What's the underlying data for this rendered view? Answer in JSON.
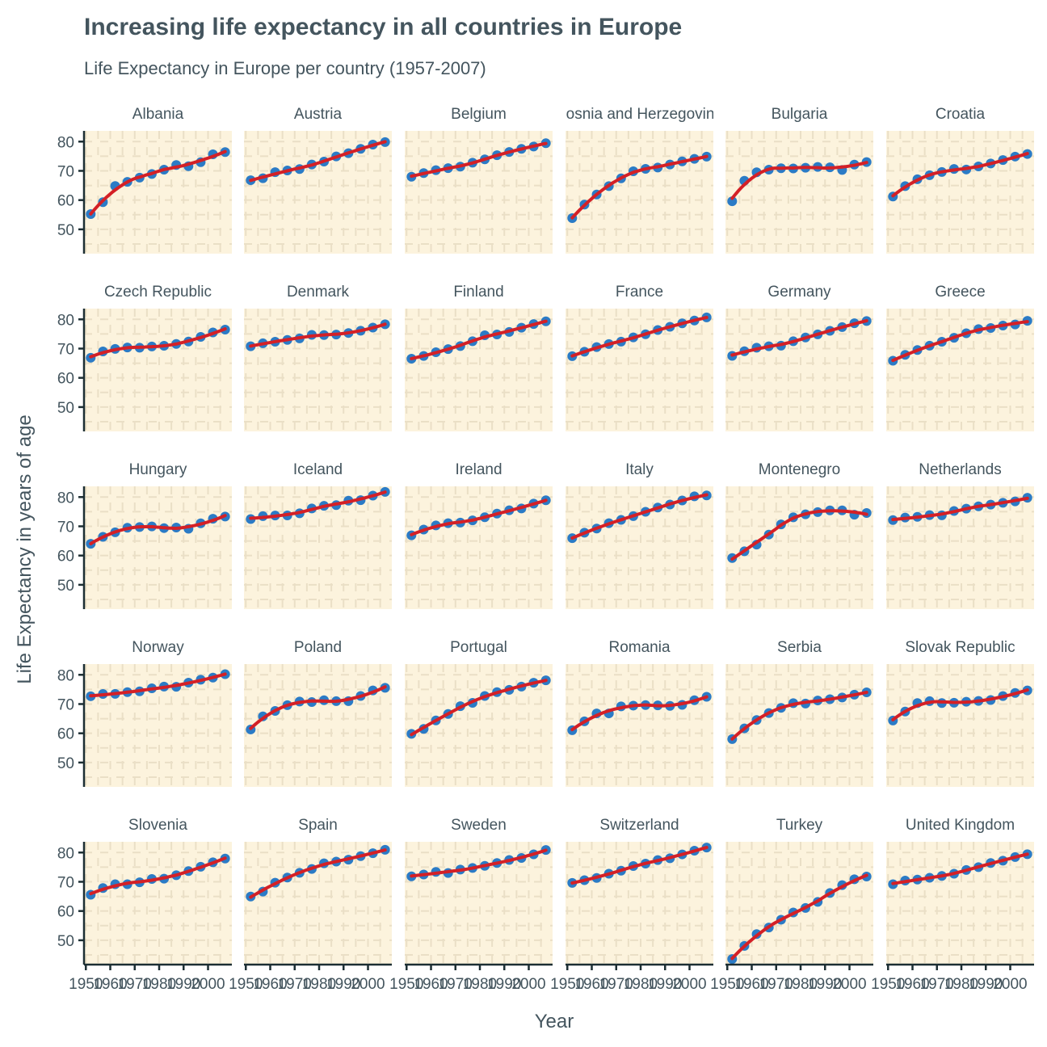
{
  "chart_data": {
    "type": "line",
    "title": "Increasing life expectancy in all countries in Europe",
    "subtitle": "Life Expectancy in Europe per country (1957-2007)",
    "xlabel": "Year",
    "ylabel": "Life Expectancy in years of age",
    "xlim": [
      1949.25,
      2009.75
    ],
    "ylim": [
      41.68,
      83.67
    ],
    "xticks": [
      1950,
      1960,
      1970,
      1980,
      1990,
      2000
    ],
    "yticks": [
      50,
      60,
      70,
      80
    ],
    "grid": true,
    "facet": "country",
    "smooth": "loess",
    "colors": {
      "points": "#2b7bc6",
      "smooth": "#d42026",
      "panel": "#fcf3dd",
      "grid": "#eadfc6",
      "axis": "#1c2e33"
    },
    "x": [
      1952,
      1957,
      1962,
      1967,
      1972,
      1977,
      1982,
      1987,
      1992,
      1997,
      2002,
      2007
    ],
    "series": [
      {
        "name": "Albania",
        "values": [
          55.23,
          59.28,
          64.82,
          66.22,
          67.69,
          68.93,
          70.42,
          72.0,
          71.58,
          72.95,
          75.65,
          76.42
        ]
      },
      {
        "name": "Austria",
        "values": [
          66.8,
          67.48,
          69.54,
          70.14,
          70.63,
          72.17,
          73.18,
          74.94,
          76.04,
          77.51,
          78.98,
          79.83
        ]
      },
      {
        "name": "Belgium",
        "values": [
          68.0,
          69.24,
          70.25,
          70.94,
          71.44,
          72.8,
          73.93,
          75.35,
          76.46,
          77.53,
          78.32,
          79.44
        ]
      },
      {
        "name": "Bosnia and Herzegovina",
        "values": [
          53.82,
          58.45,
          61.93,
          64.79,
          67.45,
          69.86,
          70.69,
          71.14,
          72.18,
          73.24,
          74.09,
          74.85
        ]
      },
      {
        "name": "Bulgaria",
        "values": [
          59.6,
          66.61,
          69.51,
          70.42,
          70.9,
          70.81,
          71.08,
          71.34,
          71.19,
          70.32,
          72.14,
          73.0
        ]
      },
      {
        "name": "Croatia",
        "values": [
          61.21,
          64.77,
          67.13,
          68.5,
          69.61,
          70.64,
          70.46,
          71.52,
          72.53,
          73.68,
          74.88,
          75.75
        ]
      },
      {
        "name": "Czech Republic",
        "values": [
          66.87,
          69.03,
          69.9,
          70.38,
          70.29,
          70.71,
          70.96,
          71.58,
          72.4,
          74.01,
          75.51,
          76.49
        ]
      },
      {
        "name": "Denmark",
        "values": [
          70.78,
          71.81,
          72.35,
          72.96,
          73.47,
          74.69,
          74.63,
          74.8,
          75.33,
          76.11,
          77.18,
          78.33
        ]
      },
      {
        "name": "Finland",
        "values": [
          66.55,
          67.49,
          68.75,
          69.83,
          70.87,
          72.52,
          74.55,
          74.83,
          75.7,
          77.13,
          78.37,
          79.31
        ]
      },
      {
        "name": "France",
        "values": [
          67.41,
          68.93,
          70.51,
          71.55,
          72.38,
          73.83,
          74.89,
          76.34,
          77.46,
          78.64,
          79.59,
          80.66
        ]
      },
      {
        "name": "Germany",
        "values": [
          67.5,
          69.1,
          70.3,
          70.8,
          71.0,
          72.5,
          73.8,
          74.85,
          76.07,
          77.34,
          78.67,
          79.41
        ]
      },
      {
        "name": "Greece",
        "values": [
          65.86,
          67.86,
          69.51,
          71.0,
          72.34,
          73.68,
          75.24,
          76.67,
          77.03,
          77.87,
          78.26,
          79.48
        ]
      },
      {
        "name": "Hungary",
        "values": [
          64.03,
          66.41,
          67.96,
          69.5,
          69.76,
          69.95,
          69.39,
          69.58,
          69.17,
          71.04,
          72.59,
          73.34
        ]
      },
      {
        "name": "Iceland",
        "values": [
          72.49,
          73.47,
          73.68,
          73.73,
          74.46,
          76.11,
          76.99,
          77.23,
          78.77,
          78.95,
          80.5,
          81.76
        ]
      },
      {
        "name": "Ireland",
        "values": [
          66.91,
          68.9,
          70.29,
          71.08,
          71.28,
          72.03,
          73.1,
          74.36,
          75.47,
          76.12,
          77.78,
          78.89
        ]
      },
      {
        "name": "Italy",
        "values": [
          65.94,
          67.81,
          69.24,
          71.06,
          72.19,
          73.48,
          74.98,
          76.42,
          77.44,
          78.82,
          80.24,
          80.55
        ]
      },
      {
        "name": "Montenegro",
        "values": [
          59.16,
          61.45,
          63.73,
          67.18,
          70.64,
          73.07,
          74.1,
          74.87,
          75.44,
          75.45,
          73.98,
          74.54
        ]
      },
      {
        "name": "Netherlands",
        "values": [
          72.13,
          72.99,
          73.23,
          73.82,
          73.75,
          75.24,
          76.05,
          76.83,
          77.42,
          78.03,
          78.53,
          79.76
        ]
      },
      {
        "name": "Norway",
        "values": [
          72.67,
          73.44,
          73.47,
          74.08,
          74.34,
          75.37,
          75.97,
          75.89,
          77.32,
          78.32,
          79.05,
          80.2
        ]
      },
      {
        "name": "Poland",
        "values": [
          61.31,
          65.77,
          67.64,
          69.61,
          70.85,
          70.67,
          71.32,
          70.98,
          70.99,
          72.75,
          74.67,
          75.56
        ]
      },
      {
        "name": "Portugal",
        "values": [
          59.82,
          61.51,
          64.39,
          66.6,
          69.26,
          70.41,
          72.77,
          74.06,
          74.86,
          75.97,
          77.29,
          78.1
        ]
      },
      {
        "name": "Romania",
        "values": [
          61.05,
          64.1,
          66.8,
          66.8,
          69.21,
          69.46,
          69.66,
          69.53,
          69.36,
          69.72,
          71.32,
          72.48
        ]
      },
      {
        "name": "Serbia",
        "values": [
          58.0,
          61.69,
          64.53,
          66.91,
          68.7,
          70.3,
          70.16,
          71.22,
          71.66,
          72.23,
          73.21,
          74.0
        ]
      },
      {
        "name": "Slovak Republic",
        "values": [
          64.36,
          67.45,
          70.33,
          70.98,
          70.35,
          70.45,
          70.8,
          71.08,
          71.38,
          72.71,
          73.8,
          74.66
        ]
      },
      {
        "name": "Slovenia",
        "values": [
          65.57,
          67.85,
          69.15,
          69.18,
          69.82,
          70.97,
          71.06,
          72.25,
          73.64,
          75.13,
          76.66,
          77.93
        ]
      },
      {
        "name": "Spain",
        "values": [
          64.94,
          66.66,
          69.69,
          71.44,
          73.06,
          74.39,
          76.3,
          76.9,
          77.57,
          78.77,
          79.78,
          80.94
        ]
      },
      {
        "name": "Sweden",
        "values": [
          71.86,
          72.49,
          73.37,
          73.01,
          74.16,
          74.72,
          75.44,
          76.42,
          77.44,
          78.16,
          79.39,
          80.88
        ]
      },
      {
        "name": "Switzerland",
        "values": [
          69.62,
          70.56,
          71.32,
          72.77,
          73.78,
          75.39,
          76.21,
          77.41,
          78.03,
          79.37,
          80.62,
          81.7
        ]
      },
      {
        "name": "Turkey",
        "values": [
          43.59,
          48.08,
          52.1,
          54.34,
          57.01,
          59.51,
          61.04,
          63.11,
          66.15,
          68.84,
          70.85,
          71.78
        ]
      },
      {
        "name": "United Kingdom",
        "values": [
          69.18,
          70.42,
          70.76,
          71.36,
          72.01,
          72.76,
          74.04,
          75.01,
          76.42,
          77.22,
          78.47,
          79.43
        ]
      }
    ]
  }
}
